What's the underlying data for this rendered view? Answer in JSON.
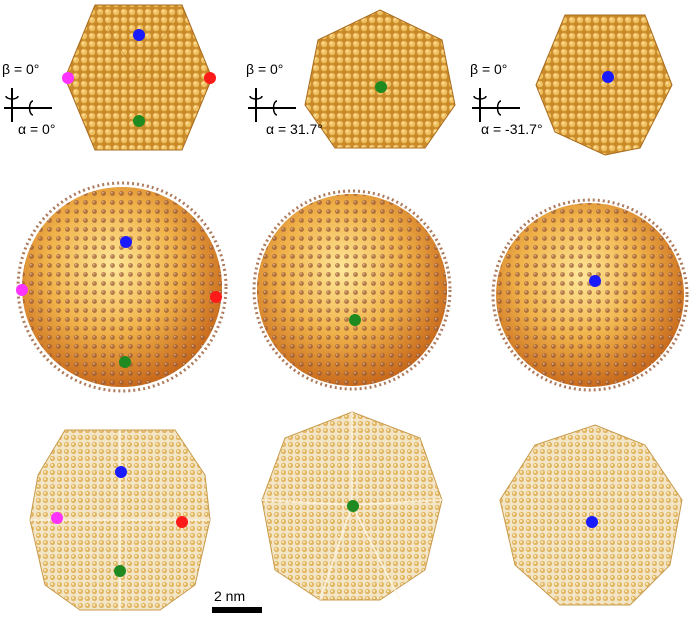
{
  "panels": {
    "top_left": {
      "beta": "β = 0°",
      "alpha": "α = 0°"
    },
    "top_center": {
      "beta": "β = 0°",
      "alpha": "α = 31.7°"
    },
    "top_right": {
      "beta": "β = 0°",
      "alpha": "α = -31.7°"
    }
  },
  "scale_bar": {
    "label": "2 nm"
  },
  "colors": {
    "marker_blue": "#1a1aff",
    "marker_green": "#1f8a1f",
    "marker_red": "#ff1a1a",
    "marker_magenta": "#ff33ff",
    "particle_gold": "#d9a040",
    "particle_dark": "#b87a2a",
    "particle_copper": "#a0603a"
  },
  "icons": [
    "rotation-axis-icon"
  ]
}
